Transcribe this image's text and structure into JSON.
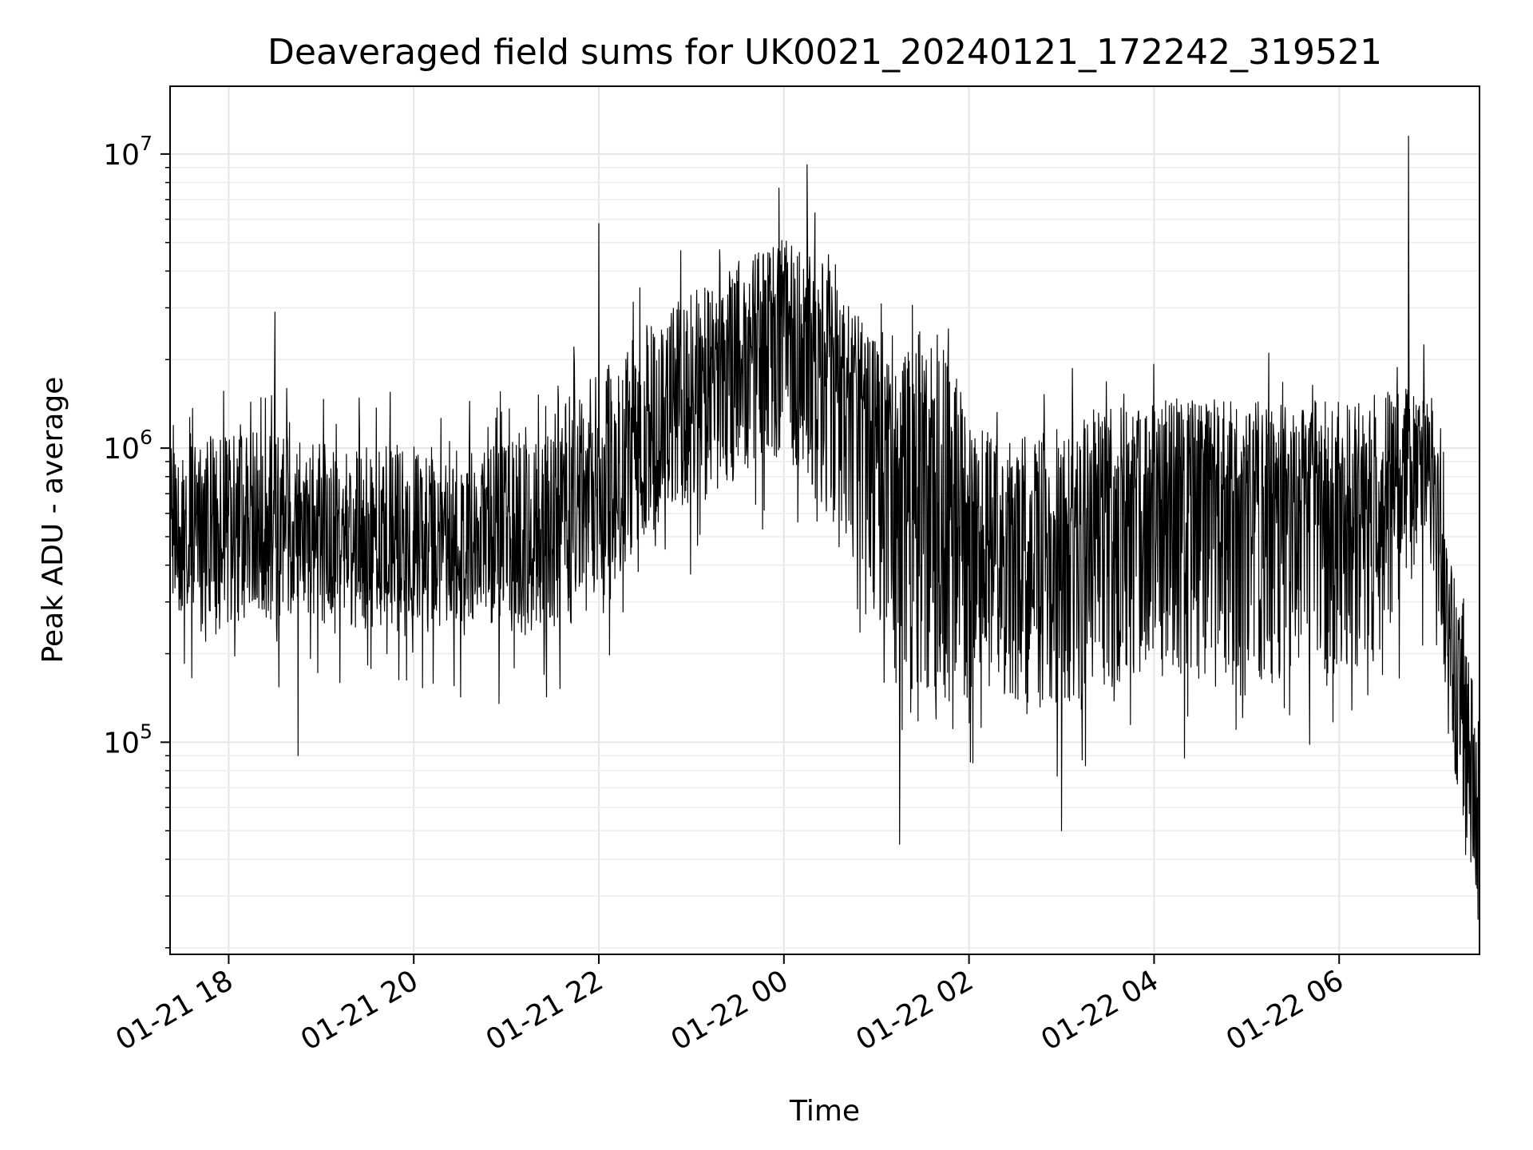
{
  "chart_data": {
    "type": "line",
    "title": "Deaveraged field sums for UK0021_20240121_172242_319521",
    "xlabel": "Time",
    "ylabel": "Peak ADU - average",
    "yscale": "log",
    "ylim": [
      19000,
      17000000
    ],
    "xlim": [
      "2024-01-21 17:22",
      "2024-01-22 07:31"
    ],
    "grid": true,
    "x_ticks": [
      "01-21 18",
      "01-21 20",
      "01-21 22",
      "01-22 00",
      "01-22 02",
      "01-22 04",
      "01-22 06"
    ],
    "y_ticks": [
      {
        "base": "10",
        "exp": "5",
        "value": 100000
      },
      {
        "base": "10",
        "exp": "6",
        "value": 1000000
      },
      {
        "base": "10",
        "exp": "7",
        "value": 10000000
      }
    ],
    "series": [
      {
        "color": "#000000",
        "time_step_minutes": 15,
        "x_start": "2024-01-21 17:30",
        "x_end": "2024-01-22 07:30",
        "x": [
          "2024-01-21 17:30",
          "2024-01-21 17:45",
          "2024-01-21 18:00",
          "2024-01-21 18:15",
          "2024-01-21 18:30",
          "2024-01-21 18:45",
          "2024-01-21 19:00",
          "2024-01-21 19:15",
          "2024-01-21 19:30",
          "2024-01-21 19:45",
          "2024-01-21 20:00",
          "2024-01-21 20:15",
          "2024-01-21 20:30",
          "2024-01-21 20:45",
          "2024-01-21 21:00",
          "2024-01-21 21:15",
          "2024-01-21 21:30",
          "2024-01-21 21:45",
          "2024-01-21 22:00",
          "2024-01-21 22:15",
          "2024-01-21 22:30",
          "2024-01-21 22:45",
          "2024-01-21 23:00",
          "2024-01-21 23:15",
          "2024-01-21 23:30",
          "2024-01-21 23:45",
          "2024-01-22 00:00",
          "2024-01-22 00:15",
          "2024-01-22 00:30",
          "2024-01-22 00:45",
          "2024-01-22 01:00",
          "2024-01-22 01:15",
          "2024-01-22 01:30",
          "2024-01-22 01:45",
          "2024-01-22 02:00",
          "2024-01-22 02:15",
          "2024-01-22 02:30",
          "2024-01-22 02:45",
          "2024-01-22 03:00",
          "2024-01-22 03:15",
          "2024-01-22 03:30",
          "2024-01-22 03:45",
          "2024-01-22 04:00",
          "2024-01-22 04:15",
          "2024-01-22 04:30",
          "2024-01-22 04:45",
          "2024-01-22 05:00",
          "2024-01-22 05:15",
          "2024-01-22 05:30",
          "2024-01-22 05:45",
          "2024-01-22 06:00",
          "2024-01-22 06:15",
          "2024-01-22 06:30",
          "2024-01-22 06:45",
          "2024-01-22 07:00",
          "2024-01-22 07:15",
          "2024-01-22 07:30"
        ],
        "values": [
          550000,
          480000,
          500000,
          520000,
          510000,
          530000,
          500000,
          490000,
          470000,
          480000,
          490000,
          470000,
          480000,
          470000,
          470000,
          460000,
          490000,
          540000,
          650000,
          860000,
          1100000,
          1300000,
          1600000,
          1800000,
          2100000,
          2400000,
          2700000,
          2500000,
          2000000,
          1500000,
          1100000,
          800000,
          950000,
          800000,
          550000,
          470000,
          470000,
          480000,
          500000,
          560000,
          600000,
          650000,
          680000,
          700000,
          700000,
          720000,
          720000,
          730000,
          740000,
          750000,
          760000,
          780000,
          800000,
          850000,
          820000,
          160000,
          40000
        ],
        "lower_envelope": [
          270000,
          220000,
          250000,
          270000,
          260000,
          280000,
          260000,
          250000,
          240000,
          250000,
          250000,
          240000,
          250000,
          240000,
          240000,
          230000,
          240000,
          250000,
          280000,
          380000,
          500000,
          560000,
          650000,
          700000,
          800000,
          900000,
          900000,
          750000,
          550000,
          400000,
          250000,
          140000,
          140000,
          130000,
          140000,
          150000,
          140000,
          140000,
          130000,
          140000,
          150000,
          150000,
          160000,
          150000,
          160000,
          150000,
          150000,
          160000,
          160000,
          160000,
          170000,
          180000,
          200000,
          350000,
          400000,
          80000,
          28000
        ],
        "upper_envelope": [
          1200000,
          1100000,
          1100000,
          1150000,
          1100000,
          1100000,
          1050000,
          1000000,
          1000000,
          1050000,
          1050000,
          1000000,
          1000000,
          1000000,
          1050000,
          1100000,
          1300000,
          1600000,
          1800000,
          2200000,
          2600000,
          3000000,
          3400000,
          3700000,
          4200000,
          4800000,
          5200000,
          4800000,
          4000000,
          3000000,
          2300000,
          2000000,
          2600000,
          2200000,
          1300000,
          1100000,
          1100000,
          1100000,
          1200000,
          1300000,
          1350000,
          1400000,
          1400000,
          1450000,
          1450000,
          1450000,
          1450000,
          1450000,
          1450000,
          1450000,
          1450000,
          1500000,
          1550000,
          1600000,
          1500000,
          350000,
          130000
        ],
        "notable_peaks": [
          {
            "x": "2024-01-21 18:30",
            "value": 2900000
          },
          {
            "x": "2024-01-21 22:00",
            "value": 5800000
          },
          {
            "x": "2024-01-22 00:15",
            "value": 9200000
          },
          {
            "x": "2024-01-22 06:45",
            "value": 11500000
          }
        ],
        "notable_dips": [
          {
            "x": "2024-01-21 18:45",
            "value": 90000
          },
          {
            "x": "2024-01-22 01:15",
            "value": 45000
          },
          {
            "x": "2024-01-22 03:00",
            "value": 50000
          },
          {
            "x": "2024-01-22 07:30",
            "value": 25000
          }
        ]
      }
    ]
  }
}
